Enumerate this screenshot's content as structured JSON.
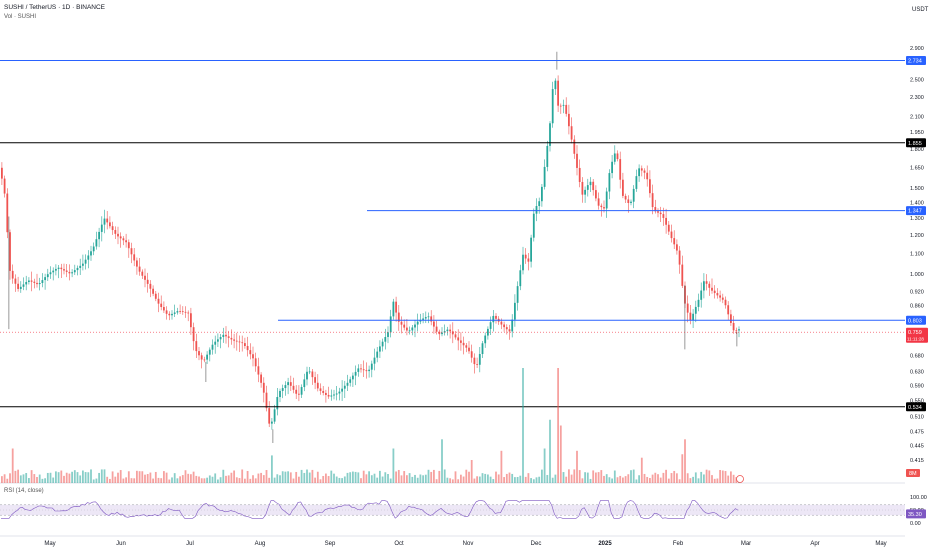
{
  "header": {
    "title": "SUSHI / TetherUS · 1D · BINANCE",
    "vol_label": "Vol · SUSHI",
    "rsi_label": "RSI (14, close)"
  },
  "colors": {
    "up": "#26a69a",
    "down": "#ef5350",
    "level_blue": "#2962ff",
    "level_black": "#000000",
    "current_price": "#f23645",
    "rsi_line": "#7e57c2",
    "rsi_band": "#ede7f6"
  },
  "chart_data": {
    "type": "candlestick",
    "quote_unit": "USDT",
    "scale": "log",
    "ylim": [
      0.4,
      2.97
    ],
    "y_ticks": [
      "2.900",
      "2.700",
      "2.500",
      "2.300",
      "2.100",
      "1.950",
      "1.800",
      "1.650",
      "1.500",
      "1.400",
      "1.300",
      "1.200",
      "1.100",
      "1.000",
      "0.920",
      "0.860",
      "0.750",
      "0.680",
      "0.630",
      "0.590",
      "0.550",
      "0.510",
      "0.475",
      "0.445",
      "0.415"
    ],
    "x_ticks": [
      "May",
      "Jun",
      "Jul",
      "Aug",
      "Sep",
      "Oct",
      "Nov",
      "Dec",
      "2025",
      "Feb",
      "Mar",
      "Apr",
      "May"
    ],
    "levels": [
      {
        "value": 2.734,
        "label": "2.734",
        "color": "blue"
      },
      {
        "value": 1.855,
        "label": "1.855",
        "color": "black"
      },
      {
        "value": 1.347,
        "label": "1.347",
        "color": "blue"
      },
      {
        "value": 0.803,
        "label": "0.803",
        "color": "blue"
      },
      {
        "value": 0.534,
        "label": "0.534",
        "color": "black"
      }
    ],
    "current_price": {
      "value": 0.759,
      "label": "0.759",
      "countdown": "11:11:28"
    },
    "path": [
      [
        0,
        1.68
      ],
      [
        6,
        1.5
      ],
      [
        12,
        1.0
      ],
      [
        20,
        0.93
      ],
      [
        30,
        0.97
      ],
      [
        40,
        0.95
      ],
      [
        50,
        1.0
      ],
      [
        60,
        1.03
      ],
      [
        72,
        1.0
      ],
      [
        85,
        1.05
      ],
      [
        95,
        1.13
      ],
      [
        106,
        1.3
      ],
      [
        118,
        1.2
      ],
      [
        128,
        1.16
      ],
      [
        140,
        1.02
      ],
      [
        150,
        0.95
      ],
      [
        160,
        0.87
      ],
      [
        170,
        0.82
      ],
      [
        180,
        0.84
      ],
      [
        190,
        0.83
      ],
      [
        197,
        0.7
      ],
      [
        205,
        0.66
      ],
      [
        215,
        0.72
      ],
      [
        225,
        0.75
      ],
      [
        235,
        0.73
      ],
      [
        245,
        0.72
      ],
      [
        255,
        0.67
      ],
      [
        265,
        0.58
      ],
      [
        272,
        0.48
      ],
      [
        280,
        0.57
      ],
      [
        290,
        0.6
      ],
      [
        300,
        0.56
      ],
      [
        310,
        0.64
      ],
      [
        320,
        0.58
      ],
      [
        330,
        0.56
      ],
      [
        340,
        0.57
      ],
      [
        350,
        0.6
      ],
      [
        360,
        0.64
      ],
      [
        370,
        0.63
      ],
      [
        380,
        0.7
      ],
      [
        390,
        0.76
      ],
      [
        395,
        0.88
      ],
      [
        400,
        0.8
      ],
      [
        410,
        0.76
      ],
      [
        420,
        0.8
      ],
      [
        430,
        0.82
      ],
      [
        440,
        0.75
      ],
      [
        450,
        0.77
      ],
      [
        460,
        0.73
      ],
      [
        470,
        0.7
      ],
      [
        478,
        0.64
      ],
      [
        485,
        0.73
      ],
      [
        495,
        0.82
      ],
      [
        505,
        0.78
      ],
      [
        512,
        0.76
      ],
      [
        520,
        0.96
      ],
      [
        525,
        1.1
      ],
      [
        530,
        1.05
      ],
      [
        536,
        1.35
      ],
      [
        542,
        1.42
      ],
      [
        548,
        1.75
      ],
      [
        552,
        2.05
      ],
      [
        556,
        2.62
      ],
      [
        560,
        2.2
      ],
      [
        566,
        2.22
      ],
      [
        572,
        1.95
      ],
      [
        578,
        1.68
      ],
      [
        584,
        1.45
      ],
      [
        592,
        1.55
      ],
      [
        600,
        1.38
      ],
      [
        606,
        1.36
      ],
      [
        612,
        1.65
      ],
      [
        618,
        1.8
      ],
      [
        624,
        1.45
      ],
      [
        632,
        1.38
      ],
      [
        640,
        1.65
      ],
      [
        648,
        1.6
      ],
      [
        655,
        1.35
      ],
      [
        664,
        1.32
      ],
      [
        672,
        1.2
      ],
      [
        680,
        1.1
      ],
      [
        686,
        0.88
      ],
      [
        692,
        0.8
      ],
      [
        700,
        0.88
      ],
      [
        706,
        0.97
      ],
      [
        712,
        0.93
      ],
      [
        720,
        0.9
      ],
      [
        726,
        0.88
      ],
      [
        732,
        0.8
      ],
      [
        736,
        0.76
      ],
      [
        740,
        0.77
      ]
    ],
    "volume_spikes": [
      {
        "x": 520,
        "v": 1.0
      },
      {
        "x": 555,
        "v": 1.0
      },
      {
        "x": 548,
        "v": 0.55
      },
      {
        "x": 440,
        "v": 0.38
      },
      {
        "x": 684,
        "v": 0.38
      },
      {
        "x": 680,
        "v": 0.25
      },
      {
        "x": 392,
        "v": 0.3
      },
      {
        "x": 270,
        "v": 0.24
      },
      {
        "x": 10,
        "v": 0.3
      },
      {
        "x": 470,
        "v": 0.2
      },
      {
        "x": 500,
        "v": 0.28
      },
      {
        "x": 542,
        "v": 0.3
      },
      {
        "x": 560,
        "v": 0.5
      },
      {
        "x": 575,
        "v": 0.28
      },
      {
        "x": 640,
        "v": 0.22
      }
    ],
    "last_volume_label": "8M",
    "rsi": {
      "upper": 70,
      "lower": 30,
      "value": 35.3,
      "value_label": "35.30",
      "ticks": [
        "100.00",
        "50.00",
        "0.00"
      ]
    }
  }
}
